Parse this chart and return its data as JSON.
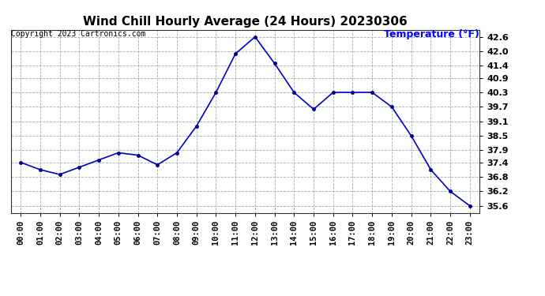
{
  "title": "Wind Chill Hourly Average (24 Hours) 20230306",
  "copyright_text": "Copyright 2023 Cartronics.com",
  "ylabel": "Temperature (°F)",
  "line_color": "#0000CC",
  "marker_color": "#00008B",
  "background_color": "#ffffff",
  "grid_color": "#aaaaaa",
  "hours": [
    "00:00",
    "01:00",
    "02:00",
    "03:00",
    "04:00",
    "05:00",
    "06:00",
    "07:00",
    "08:00",
    "09:00",
    "10:00",
    "11:00",
    "12:00",
    "13:00",
    "14:00",
    "15:00",
    "16:00",
    "17:00",
    "18:00",
    "19:00",
    "20:00",
    "21:00",
    "22:00",
    "23:00"
  ],
  "values": [
    37.4,
    37.1,
    36.9,
    37.2,
    37.5,
    37.8,
    37.7,
    37.3,
    37.8,
    38.9,
    40.3,
    41.9,
    42.6,
    41.5,
    40.3,
    39.6,
    40.3,
    40.3,
    40.3,
    39.7,
    38.5,
    37.1,
    36.2,
    35.6
  ],
  "yticks": [
    35.6,
    36.2,
    36.8,
    37.4,
    37.9,
    38.5,
    39.1,
    39.7,
    40.3,
    40.9,
    41.4,
    42.0,
    42.6
  ],
  "ylim": [
    35.3,
    42.9
  ],
  "title_color": "#000000",
  "ylabel_color": "#0000FF",
  "copyright_color": "#000000",
  "title_fontsize": 11,
  "copyright_fontsize": 7,
  "ylabel_fontsize": 9,
  "tick_fontsize": 7.5,
  "ytick_fontsize": 8
}
